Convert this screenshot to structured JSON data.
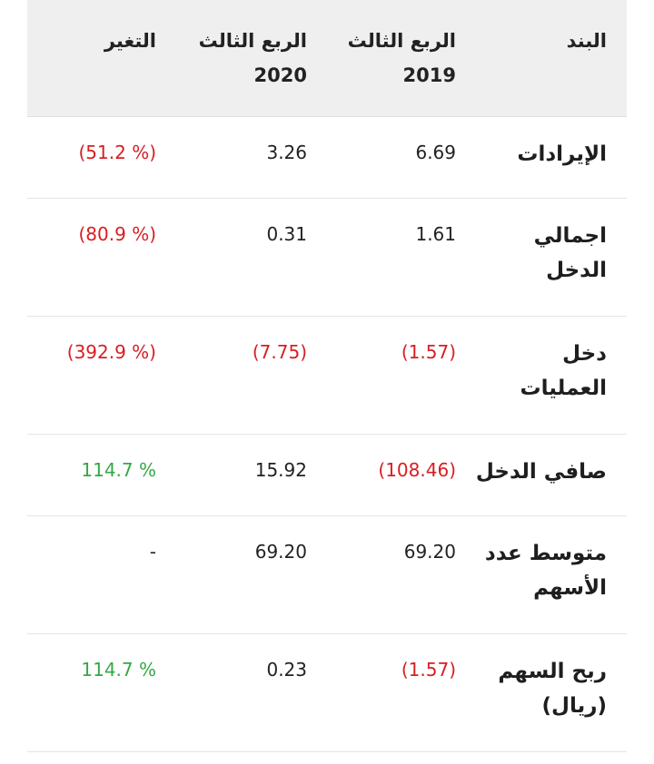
{
  "header": {
    "item": "البند",
    "q3_2019": [
      "الربع الثالث",
      "2019"
    ],
    "q3_2020": [
      "الربع الثالث",
      "2020"
    ],
    "change": "التغير"
  },
  "rows": [
    {
      "item": [
        "الإيرادات"
      ],
      "q3_2019": "6.69",
      "q3_2020": "3.26",
      "change": "(51.2 %)",
      "change_tone": "negative"
    },
    {
      "item": [
        "اجمالي",
        "الدخل"
      ],
      "q3_2019": "1.61",
      "q3_2020": "0.31",
      "change": "(80.9 %)",
      "change_tone": "negative"
    },
    {
      "item": [
        "دخل",
        "العمليات"
      ],
      "q3_2019": "(1.57)",
      "q3_2020": "(7.75)",
      "change": "(392.9 %)",
      "change_tone": "negative"
    },
    {
      "item": [
        "صافي الدخل"
      ],
      "q3_2019": "(108.46)",
      "q3_2020": "15.92",
      "change": "114.7 %",
      "change_tone": "positive"
    },
    {
      "item": [
        "متوسط عدد",
        "الأسهم"
      ],
      "q3_2019": "69.20",
      "q3_2020": "69.20",
      "change": "-",
      "change_tone": "neutral"
    },
    {
      "item": [
        "ربح السهم",
        "(ريال)"
      ],
      "q3_2019": "(1.57)",
      "q3_2020": "0.23",
      "change": "114.7 %",
      "change_tone": "positive"
    }
  ],
  "colors": {
    "negative": "#d81e22",
    "positive": "#35a845",
    "header_bg": "#efefef"
  }
}
